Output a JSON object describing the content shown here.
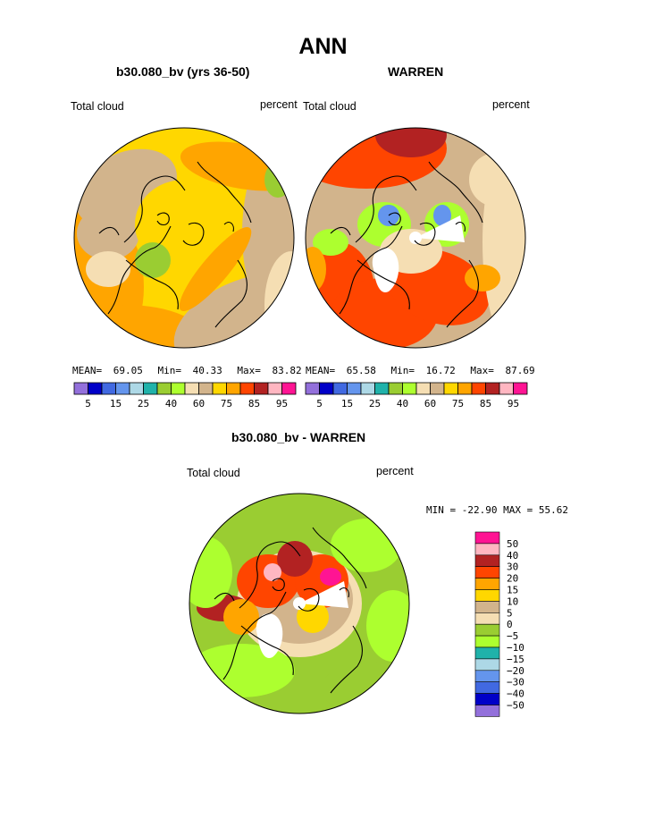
{
  "page": {
    "title": "ANN"
  },
  "palette": {
    "colors": [
      "#9370db",
      "#0000c8",
      "#4169e1",
      "#6495ed",
      "#add8e6",
      "#20b2aa",
      "#9acd32",
      "#adff2f",
      "#f5deb3",
      "#d2b48c",
      "#ffd700",
      "#ffa500",
      "#ff4500",
      "#b22222",
      "#ffb6c1",
      "#ff1493"
    ],
    "ocean_low": "#f5deb3",
    "coast": "#000000"
  },
  "chart_data": [
    {
      "type": "heatmap",
      "projection": "north-polar-stereographic",
      "title": "b30.080_bv (yrs 36-50)",
      "left_label": "Total cloud",
      "right_label": "percent",
      "stats": {
        "mean_label": "MEAN=",
        "mean": "69.05",
        "min_label": "Min=",
        "min": "40.33",
        "max_label": "Max=",
        "max": "83.82"
      },
      "colorbar_ticks": [
        "5",
        "15",
        "25",
        "40",
        "60",
        "75",
        "85",
        "95"
      ],
      "dominant_fields": [
        "#ffd700",
        "#d2b48c",
        "#ffa500",
        "#f5deb3"
      ]
    },
    {
      "type": "heatmap",
      "projection": "north-polar-stereographic",
      "title": "WARREN",
      "left_label": "Total cloud",
      "right_label": "percent",
      "stats": {
        "mean_label": "MEAN=",
        "mean": "65.58",
        "min_label": "Min=",
        "min": "16.72",
        "max_label": "Max=",
        "max": "87.69"
      },
      "colorbar_ticks": [
        "5",
        "15",
        "25",
        "40",
        "60",
        "75",
        "85",
        "95"
      ],
      "dominant_fields": [
        "#d2b48c",
        "#ff4500",
        "#f5deb3",
        "#ffa500"
      ]
    },
    {
      "type": "heatmap",
      "projection": "north-polar-stereographic",
      "title": "b30.080_bv - WARREN",
      "left_label": "Total cloud",
      "right_label": "percent",
      "range_text": "MIN = -22.90 MAX =  55.62",
      "legend_labels": [
        "50",
        "40",
        "30",
        "20",
        "15",
        "10",
        "5",
        "0",
        "−5",
        "−10",
        "−15",
        "−20",
        "−30",
        "−40",
        "−50"
      ],
      "legend_colors": [
        "#ff1493",
        "#ffb6c1",
        "#b22222",
        "#ff4500",
        "#ffa500",
        "#ffd700",
        "#d2b48c",
        "#f5deb3",
        "#9acd32",
        "#adff2f",
        "#20b2aa",
        "#add8e6",
        "#6495ed",
        "#4169e1",
        "#0000c8",
        "#9370db"
      ],
      "dominant_fields": [
        "#9acd32",
        "#adff2f",
        "#f5deb3",
        "#d2b48c"
      ]
    }
  ]
}
